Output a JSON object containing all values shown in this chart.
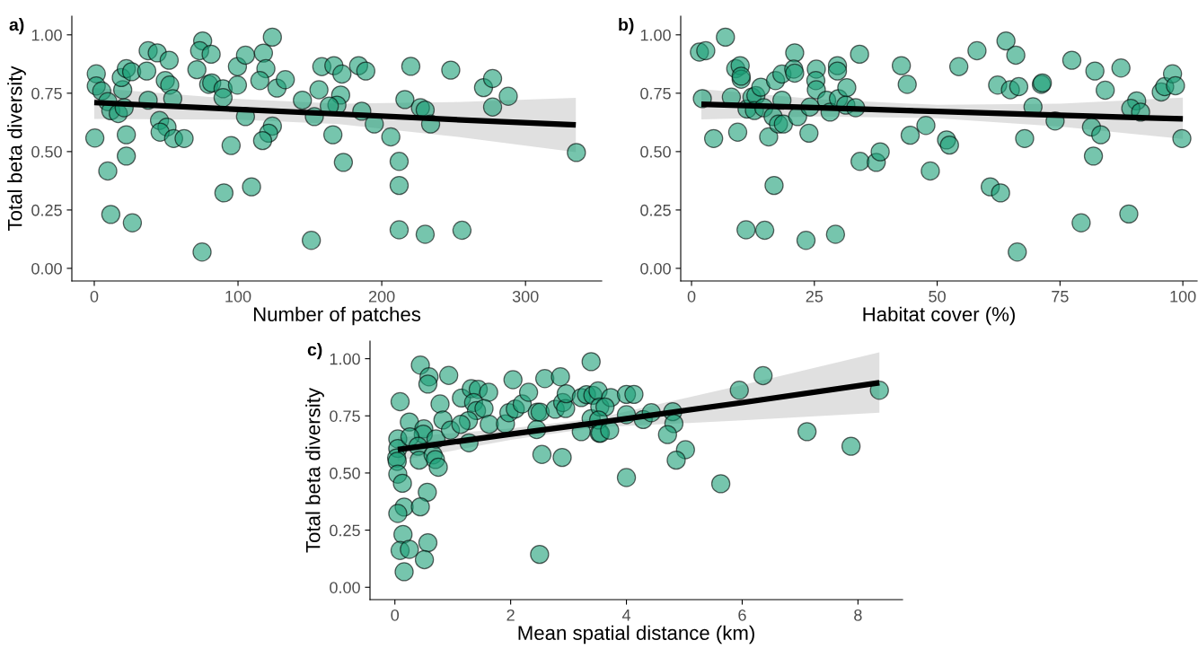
{
  "chart_data": [
    {
      "type": "scatter",
      "xlabel": "Number of patches",
      "ylabel": "Total beta diversity",
      "annotations": [
        "a)"
      ],
      "xlim": [
        -15.6,
        353
      ],
      "ylim": [
        -0.054,
        1.08
      ],
      "xticks": [
        0,
        100,
        200,
        300
      ],
      "yticks": [
        {
          "value": 0,
          "label": "0.00"
        },
        {
          "value": 0.25,
          "label": "0.25"
        },
        {
          "value": 0.5,
          "label": "0.50"
        },
        {
          "value": 0.75,
          "label": "0.75"
        },
        {
          "value": 1,
          "label": "1.00"
        }
      ],
      "grid": false,
      "series": [
        {
          "marker": "circle",
          "color": "#1b9e77",
          "x": [
            1.4,
            1.4,
            5.2,
            9.4,
            11.5,
            16.7,
            20.8,
            19.8,
            18.8,
            22.3,
            26,
            0.4,
            22.3,
            22.3,
            9.4,
            11.5,
            26.5,
            36.5,
            37.5,
            43.8,
            52.1,
            37.5,
            49.4,
            52.5,
            54.6,
            45.4,
            50.6,
            45.8,
            55.2,
            62.5,
            75.4,
            73.3,
            81.3,
            71.4,
            79.6,
            81.7,
            89.6,
            89.6,
            75,
            95.2,
            90.2,
            109.4,
            99.6,
            105.2,
            99.6,
            105.2,
            123.9,
            117.7,
            119.4,
            115.2,
            127.1,
            132.9,
            123.9,
            121.3,
            117.1,
            144.8,
            153.1,
            151,
            156.3,
            158.3,
            166.7,
            166,
            172.3,
            183.9,
            188.9,
            171.4,
            168.8,
            163.5,
            173.3,
            186.1,
            194.8,
            206.3,
            220.2,
            216.1,
            212.1,
            212.1,
            212.1,
            230.2,
            255.8,
            226.9,
            230.2,
            234,
            248,
            270.8,
            277.1,
            277.1,
            288,
            335.4
          ],
          "values": [
            0.833,
            0.781,
            0.759,
            0.714,
            0.675,
            0.663,
            0.688,
            0.765,
            0.817,
            0.855,
            0.842,
            0.558,
            0.572,
            0.481,
            0.417,
            0.231,
            0.195,
            0.845,
            0.932,
            0.923,
            0.891,
            0.72,
            0.804,
            0.785,
            0.727,
            0.633,
            0.605,
            0.583,
            0.556,
            0.556,
            0.974,
            0.932,
            0.917,
            0.851,
            0.788,
            0.794,
            0.769,
            0.731,
            0.07,
            0.526,
            0.323,
            0.349,
            0.864,
            0.913,
            0.785,
            0.65,
            0.99,
            0.922,
            0.855,
            0.804,
            0.772,
            0.808,
            0.609,
            0.579,
            0.547,
            0.72,
            0.65,
            0.12,
            0.765,
            0.864,
            0.868,
            0.572,
            0.832,
            0.868,
            0.845,
            0.742,
            0.699,
            0.695,
            0.454,
            0.673,
            0.618,
            0.563,
            0.865,
            0.723,
            0.458,
            0.355,
            0.165,
            0.146,
            0.163,
            0.688,
            0.678,
            0.618,
            0.849,
            0.774,
            0.813,
            0.691,
            0.737,
            0.496
          ]
        },
        {
          "type": "line",
          "color": "#000000",
          "x": [
            0,
            100,
            170,
            250,
            335
          ],
          "values": [
            0.71,
            0.681,
            0.661,
            0.637,
            0.614
          ],
          "lower": [
            0.64,
            0.637,
            0.618,
            0.565,
            0.498
          ],
          "upper": [
            0.772,
            0.725,
            0.705,
            0.712,
            0.73
          ]
        }
      ]
    },
    {
      "type": "scatter",
      "xlabel": "Habitat cover (%)",
      "annotations": [
        "b)"
      ],
      "xlim": [
        -2.2,
        102.9
      ],
      "ylim": [
        -0.054,
        1.08
      ],
      "xticks": [
        0,
        25,
        50,
        75,
        100
      ],
      "yticks": [
        {
          "value": 0,
          "label": "0.00"
        },
        {
          "value": 0.25,
          "label": "0.25"
        },
        {
          "value": 0.5,
          "label": "0.50"
        },
        {
          "value": 0.75,
          "label": "0.75"
        },
        {
          "value": 1,
          "label": "1.00"
        }
      ],
      "grid": false,
      "series": [
        {
          "marker": "circle",
          "color": "#1b9e77",
          "x": [
            1.6,
            2.9,
            6.9,
            9.0,
            9.9,
            10.1,
            10.1,
            2.2,
            4.5,
            8.1,
            9.4,
            11.3,
            12.3,
            13.1,
            14.1,
            12.8,
            14.7,
            15.7,
            16.8,
            11.1,
            14.9,
            17.1,
            18.4,
            16.6,
            17.7,
            18.7,
            18.4,
            21.0,
            20.8,
            21.0,
            21.6,
            23.3,
            23.9,
            25.4,
            25.3,
            25.4,
            24.1,
            27.5,
            28.2,
            29.7,
            29.7,
            29.9,
            29.3,
            31.6,
            31.4,
            33.4,
            34.2,
            34.3,
            37.6,
            38.4,
            42.7,
            43.9,
            44.5,
            47.7,
            48.6,
            51.9,
            52.5,
            54.4,
            58.1,
            64.0,
            66.0,
            62.3,
            64.9,
            66.6,
            60.8,
            62.9,
            66.3,
            67.8,
            69.5,
            71.2,
            71.4,
            74.0,
            77.4,
            82.1,
            84.2,
            87.4,
            81.4,
            83.3,
            81.8,
            79.3,
            89.0,
            90.6,
            89.4,
            91.4,
            95.6,
            96.3,
            97.9,
            98.5,
            99.8
          ],
          "values": [
            0.926,
            0.932,
            0.99,
            0.855,
            0.868,
            0.81,
            0.823,
            0.727,
            0.556,
            0.733,
            0.583,
            0.682,
            0.733,
            0.74,
            0.776,
            0.676,
            0.688,
            0.563,
            0.355,
            0.165,
            0.163,
            0.804,
            0.832,
            0.65,
            0.618,
            0.618,
            0.72,
            0.923,
            0.853,
            0.836,
            0.65,
            0.12,
            0.579,
            0.853,
            0.804,
            0.765,
            0.691,
            0.72,
            0.669,
            0.868,
            0.845,
            0.727,
            0.146,
            0.774,
            0.699,
            0.688,
            0.917,
            0.458,
            0.454,
            0.499,
            0.868,
            0.788,
            0.57,
            0.612,
            0.417,
            0.55,
            0.528,
            0.864,
            0.932,
            0.974,
            0.913,
            0.785,
            0.765,
            0.778,
            0.349,
            0.323,
            0.07,
            0.556,
            0.692,
            0.788,
            0.794,
            0.631,
            0.891,
            0.845,
            0.763,
            0.858,
            0.605,
            0.572,
            0.481,
            0.195,
            0.233,
            0.717,
            0.685,
            0.669,
            0.755,
            0.778,
            0.833,
            0.782,
            0.556
          ]
        },
        {
          "type": "line",
          "color": "#000000",
          "x": [
            2,
            25,
            50,
            75,
            100
          ],
          "values": [
            0.703,
            0.688,
            0.672,
            0.656,
            0.64
          ],
          "lower": [
            0.638,
            0.65,
            0.643,
            0.607,
            0.554
          ],
          "upper": [
            0.768,
            0.725,
            0.7,
            0.705,
            0.731
          ]
        }
      ]
    },
    {
      "type": "scatter",
      "xlabel": "Mean spatial distance (km)",
      "ylabel": "Total beta diversity",
      "annotations": [
        "c)"
      ],
      "xlim": [
        -0.43,
        8.77
      ],
      "ylim": [
        -0.054,
        1.077
      ],
      "xticks": [
        0,
        2,
        4,
        6,
        8
      ],
      "yticks": [
        {
          "value": 0,
          "label": "0.00"
        },
        {
          "value": 0.25,
          "label": "0.25"
        },
        {
          "value": 0.5,
          "label": "0.50"
        },
        {
          "value": 0.75,
          "label": "0.75"
        },
        {
          "value": 1,
          "label": "1.00"
        }
      ],
      "grid": false,
      "series": [
        {
          "marker": "circle",
          "color": "#1b9e77",
          "x": [
            0.44,
            0.59,
            0.57,
            0.93,
            0.09,
            0.78,
            0.25,
            0.05,
            0.05,
            0.03,
            0.04,
            0.05,
            0.13,
            0.5,
            0.49,
            0.26,
            0.4,
            0.42,
            0.66,
            0.7,
            0.75,
            0.71,
            0.83,
            0.96,
            0.56,
            0.16,
            0.05,
            0.44,
            0.14,
            0.09,
            0.25,
            0.57,
            0.51,
            0.16,
            2.5,
            1.15,
            1.32,
            1.44,
            1.62,
            1.36,
            1.41,
            1.54,
            1.27,
            1.14,
            1.28,
            1.63,
            1.91,
            1.97,
            2.08,
            2.2,
            2.04,
            2.31,
            2.46,
            2.51,
            2.45,
            2.54,
            2.59,
            2.77,
            2.86,
            2.9,
            2.95,
            2.96,
            2.89,
            3.22,
            3.31,
            3.39,
            3.39,
            3.42,
            3.51,
            3.22,
            3.53,
            3.54,
            3.73,
            3.63,
            4.0,
            4.13,
            3.52,
            3.55,
            3.71,
            4.0,
            4.29,
            4.43,
            4.8,
            4.82,
            4.71,
            5.02,
            4.86,
            4.0,
            5.63,
            5.95,
            6.36,
            7.12,
            7.88,
            8.37
          ],
          "values": [
            0.972,
            0.921,
            0.889,
            0.927,
            0.812,
            0.802,
            0.723,
            0.649,
            0.607,
            0.566,
            0.551,
            0.495,
            0.455,
            0.693,
            0.67,
            0.658,
            0.617,
            0.556,
            0.579,
            0.559,
            0.525,
            0.649,
            0.732,
            0.687,
            0.416,
            0.351,
            0.323,
            0.352,
            0.231,
            0.161,
            0.166,
            0.195,
            0.121,
            0.068,
            0.144,
            0.828,
            0.869,
            0.866,
            0.853,
            0.808,
            0.773,
            0.782,
            0.729,
            0.713,
            0.632,
            0.713,
            0.715,
            0.764,
            0.78,
            0.802,
            0.908,
            0.853,
            0.766,
            0.766,
            0.69,
            0.581,
            0.913,
            0.779,
            0.921,
            0.808,
            0.782,
            0.847,
            0.568,
            0.83,
            0.843,
            0.987,
            0.738,
            0.84,
            0.859,
            0.681,
            0.674,
            0.789,
            0.83,
            0.789,
            0.844,
            0.844,
            0.732,
            0.674,
            0.687,
            0.755,
            0.734,
            0.764,
            0.768,
            0.716,
            0.668,
            0.602,
            0.556,
            0.48,
            0.453,
            0.862,
            0.926,
            0.681,
            0.617,
            0.862
          ]
        },
        {
          "type": "line",
          "color": "#000000",
          "x": [
            0.05,
            2,
            3.5,
            6,
            8.37
          ],
          "values": [
            0.602,
            0.67,
            0.72,
            0.808,
            0.895
          ],
          "lower": [
            0.553,
            0.645,
            0.7,
            0.73,
            0.764
          ],
          "upper": [
            0.655,
            0.695,
            0.74,
            0.885,
            1.028
          ]
        }
      ]
    }
  ]
}
